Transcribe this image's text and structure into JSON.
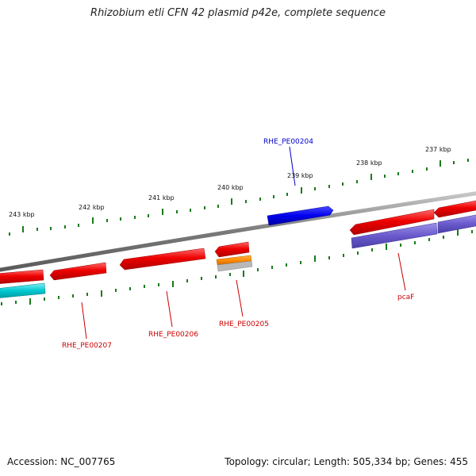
{
  "title": "Rhizobium etli CFN 42 plasmid p42e, complete sequence",
  "footer": {
    "accession": "Accession: NC_007765",
    "summary": "Topology: circular; Length: 505,334 bp; Genes: 455"
  },
  "ticks": [
    "237 kbp",
    "238 kbp",
    "239 kbp",
    "240 kbp",
    "241 kbp",
    "242 kbp",
    "243 kbp"
  ],
  "gene_labels": [
    {
      "id": "RHE_PE00204",
      "color": "#0000cc"
    },
    {
      "id": "pcaF",
      "color": "#cc0000"
    },
    {
      "id": "RHE_PE00205",
      "color": "#cc0000"
    },
    {
      "id": "RHE_PE00206",
      "color": "#cc0000"
    },
    {
      "id": "RHE_PE00207",
      "color": "#cc0000"
    }
  ],
  "colors": {
    "backbone": "#7a7a7a",
    "tick": "#1a7a1a",
    "cds_forward": "#e00000",
    "cds_reverse": "#0000ee",
    "rna": "#ff8c00",
    "misc": "#00c8d0",
    "operon": "#6a5acd",
    "gray_feature": "#b0b0b0"
  }
}
